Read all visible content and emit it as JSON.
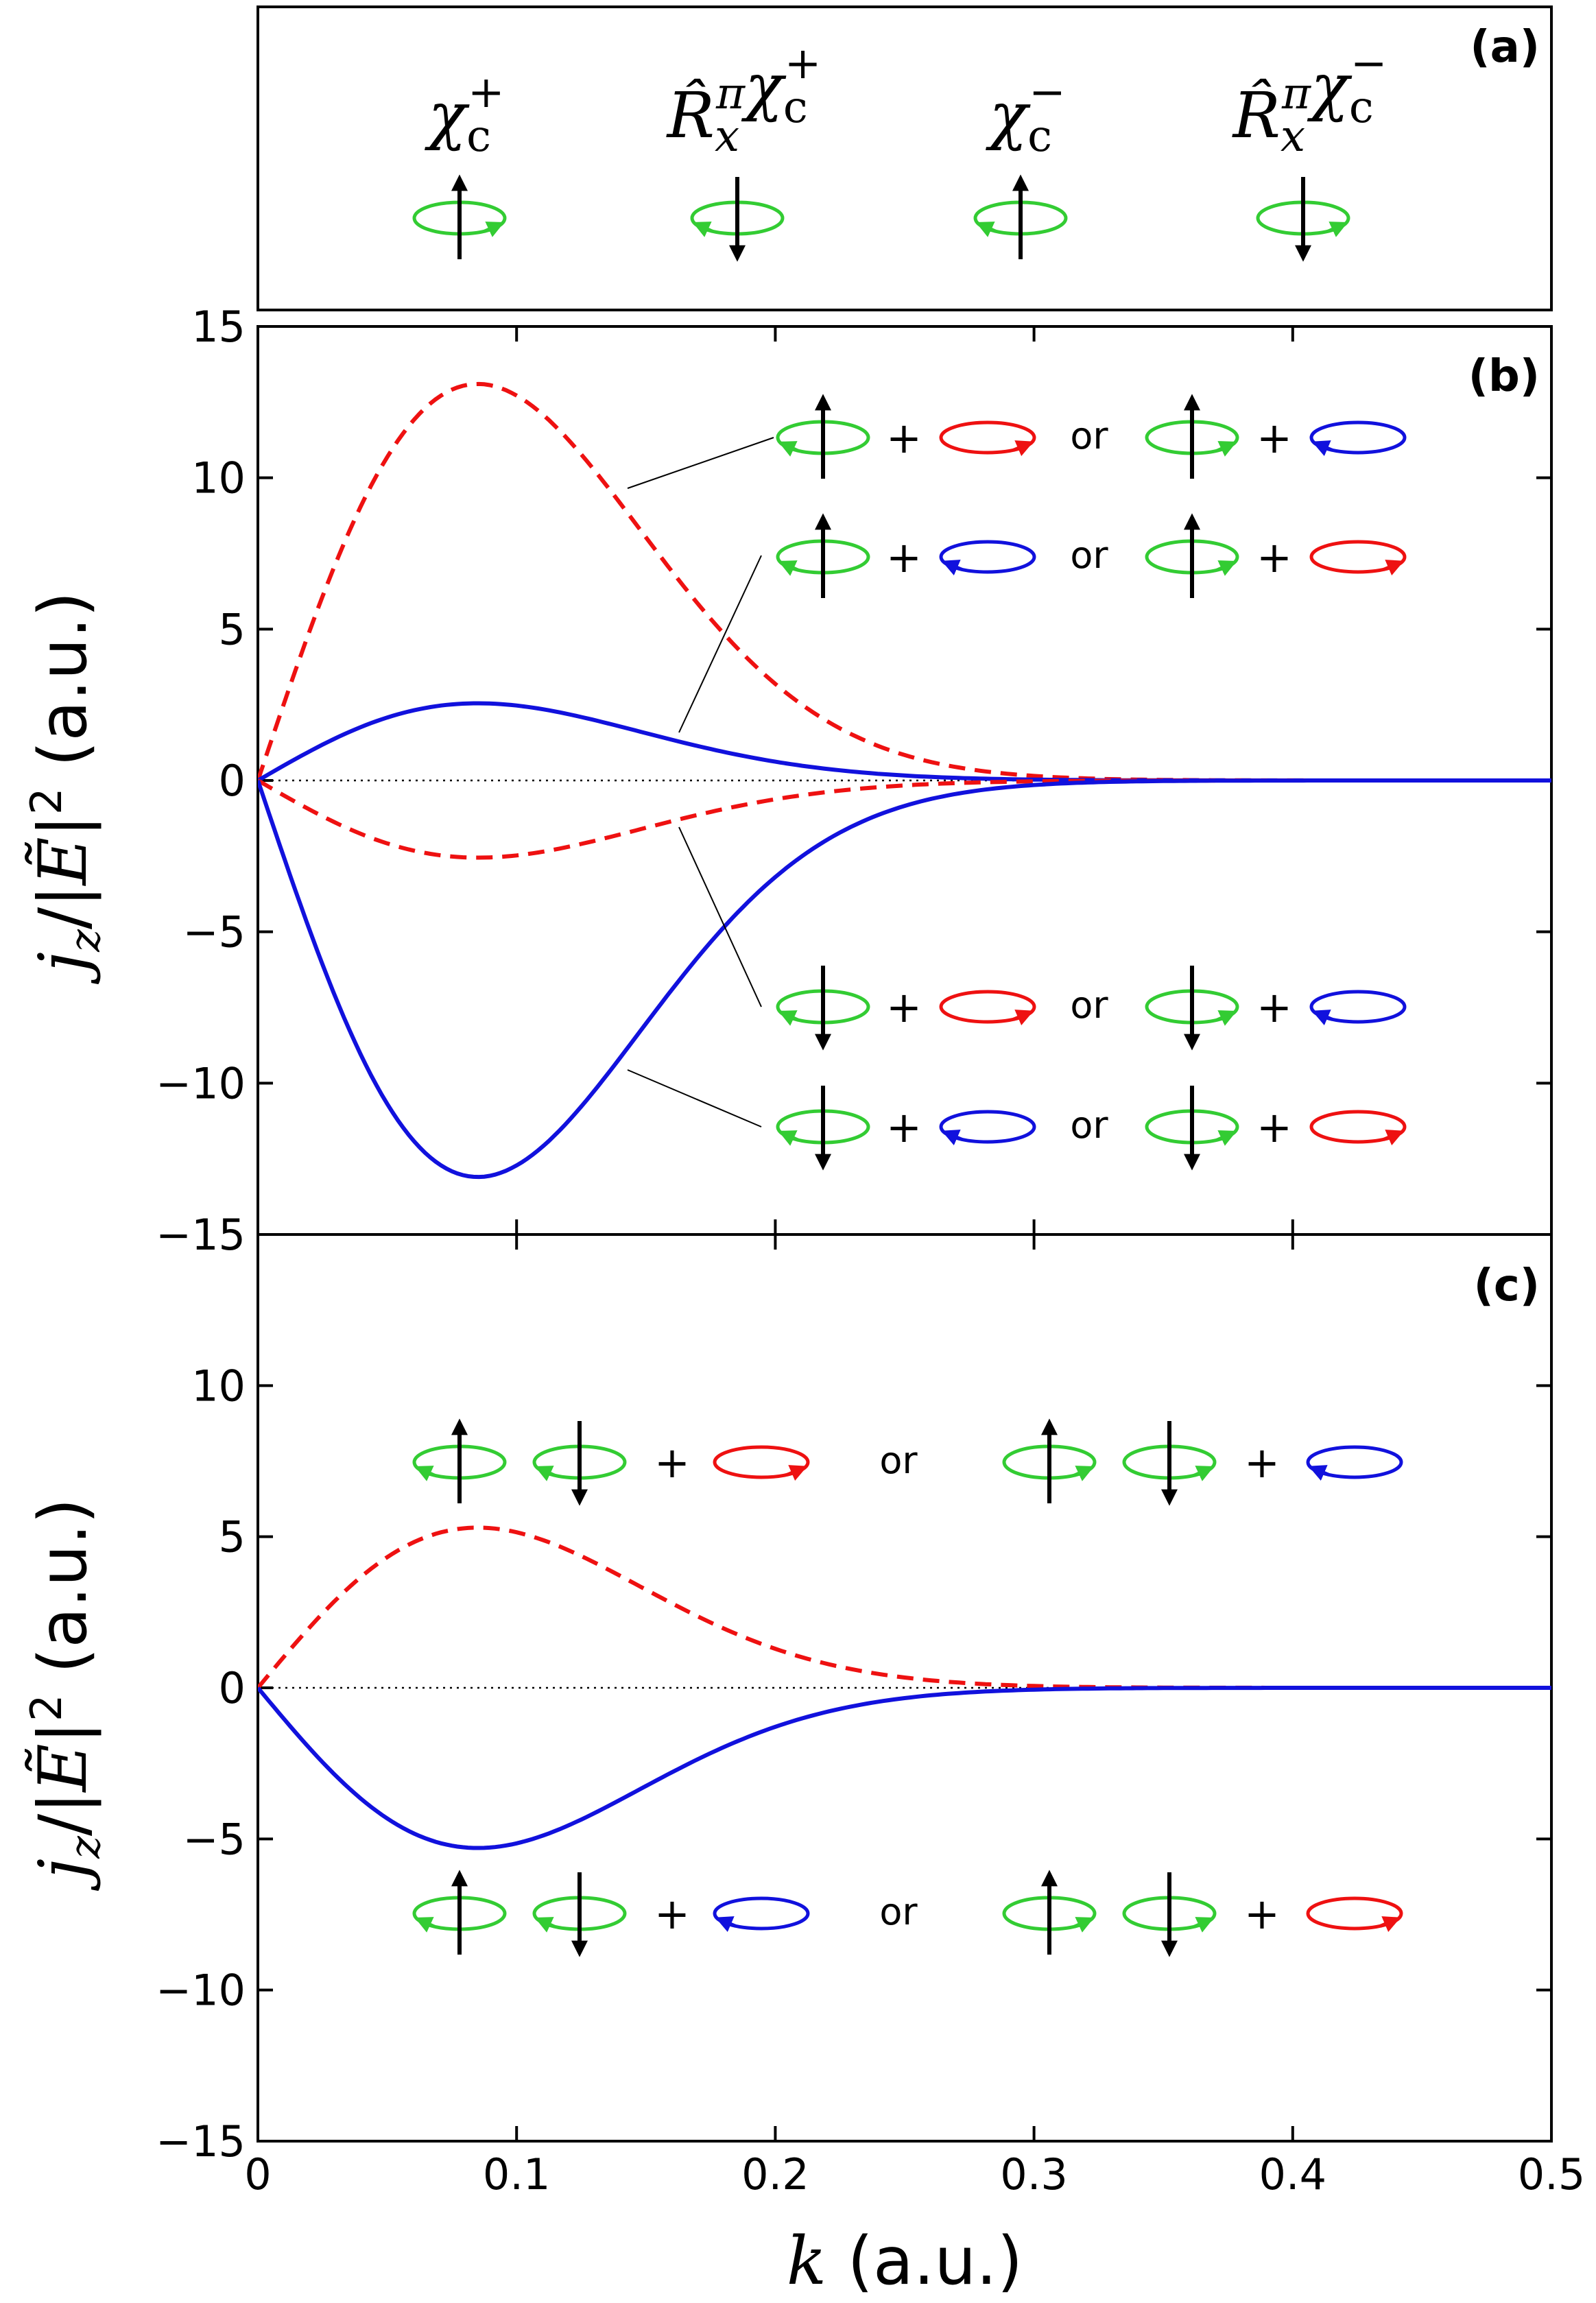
{
  "colors": {
    "spin_ring": "#33cc33",
    "red": "#ee1111",
    "blue": "#1111dd",
    "axis": "#000000"
  },
  "panel_labels": {
    "a": "(a)",
    "b": "(b)",
    "c": "(c)"
  },
  "panel_a": {
    "symbols": [
      {
        "label": "χ_c^+",
        "base": "χ",
        "sub": "c",
        "sup": "+",
        "prefix": "",
        "arrow": "up",
        "rot": "ccw"
      },
      {
        "label": "R̂_x^π χ_c^+",
        "base": "χ",
        "sub": "c",
        "sup": "+",
        "prefix": "R̂",
        "arrow": "down",
        "rot": "cw"
      },
      {
        "label": "χ_c^−",
        "base": "χ",
        "sub": "c",
        "sup": "−",
        "prefix": "",
        "arrow": "up",
        "rot": "cw"
      },
      {
        "label": "R̂_x^π χ_c^−",
        "base": "χ",
        "sub": "c",
        "sup": "−",
        "prefix": "R̂",
        "arrow": "down",
        "rot": "ccw"
      }
    ]
  },
  "annotations": {
    "or": "or",
    "plus": "+"
  },
  "chart_data": [
    {
      "type": "line",
      "panel": "b",
      "xlabel": "",
      "ylabel": "j_z/|Ẽ|² (a.u.)",
      "xlim": [
        0,
        0.5
      ],
      "ylim": [
        -15,
        15
      ],
      "yticks": [
        -15,
        -10,
        -5,
        0,
        5,
        10,
        15
      ],
      "xticks": [
        0,
        0.1,
        0.2,
        0.3,
        0.4,
        0.5
      ],
      "zero_line": "dotted",
      "series": [
        {
          "style": "dashed",
          "color": "red",
          "peak_x": 0.085,
          "amplitude": 13.1
        },
        {
          "style": "solid",
          "color": "blue",
          "peak_x": 0.085,
          "amplitude": 2.55
        },
        {
          "style": "dashed",
          "color": "red",
          "peak_x": 0.085,
          "amplitude": -2.55
        },
        {
          "style": "solid",
          "color": "blue",
          "peak_x": 0.085,
          "amplitude": -13.1
        }
      ]
    },
    {
      "type": "line",
      "panel": "c",
      "xlabel": "k (a.u.)",
      "ylabel": "j_z/|Ẽ|² (a.u.)",
      "xlim": [
        0,
        0.5
      ],
      "ylim": [
        -15,
        15
      ],
      "yticks": [
        -15,
        -10,
        -5,
        0,
        5,
        10
      ],
      "xticks": [
        0,
        0.1,
        0.2,
        0.3,
        0.4,
        0.5
      ],
      "xticklabels": [
        "0",
        "0.1",
        "0.2",
        "0.3",
        "0.4",
        "0.5"
      ],
      "zero_line": "dotted",
      "series": [
        {
          "style": "dashed",
          "color": "red",
          "peak_x": 0.085,
          "amplitude": 5.3
        },
        {
          "style": "solid",
          "color": "blue",
          "peak_x": 0.085,
          "amplitude": -5.3
        }
      ]
    }
  ]
}
